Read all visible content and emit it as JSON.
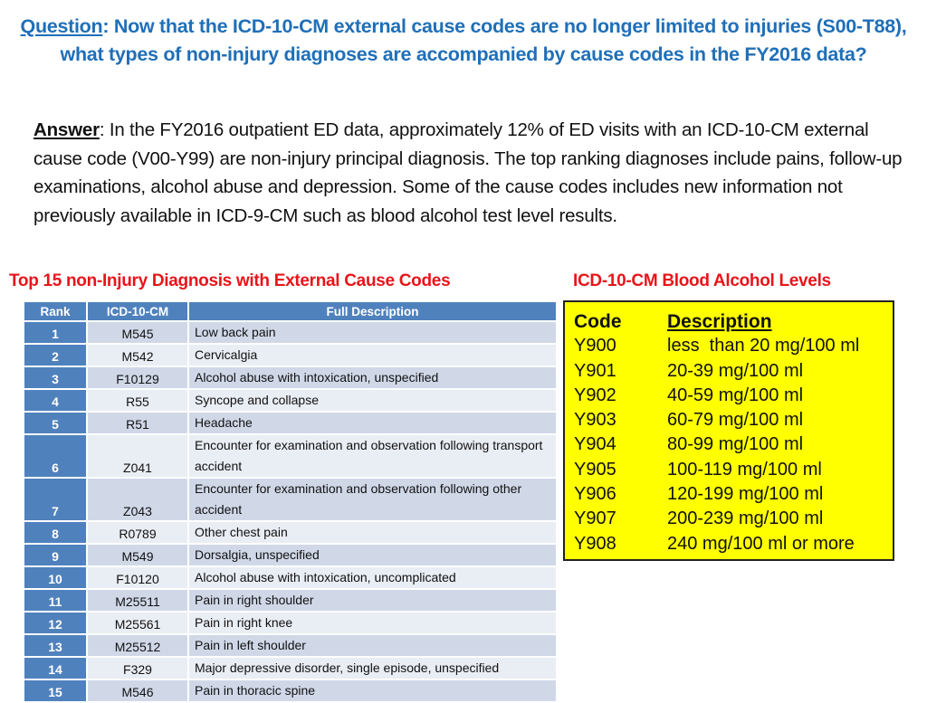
{
  "question": {
    "label": "Question",
    "text": ":  Now that the ICD-10-CM external cause codes are no longer limited to injuries (S00-T88), what types of non-injury diagnoses are accompanied by cause codes in the FY2016 data?"
  },
  "answer": {
    "label": "Answer",
    "text": ": In the FY2016 outpatient ED data, approximately 12% of ED visits with an ICD-10-CM external cause code (V00-Y99) are non-injury principal diagnosis. The top ranking diagnoses include pains, follow-up examinations, alcohol abuse and depression. Some of the cause codes includes new information not previously available in ICD-9-CM such as blood alcohol test level results."
  },
  "top15": {
    "title": "Top 15 non-Injury Diagnosis with External Cause Codes",
    "headers": [
      "Rank",
      "ICD-10-CM",
      "Full Description"
    ],
    "rows": [
      {
        "rank": "1",
        "code": "M545",
        "desc": "Low back pain"
      },
      {
        "rank": "2",
        "code": "M542",
        "desc": "Cervicalgia"
      },
      {
        "rank": "3",
        "code": "F10129",
        "desc": "Alcohol abuse with intoxication, unspecified"
      },
      {
        "rank": "4",
        "code": "R55",
        "desc": "Syncope and collapse"
      },
      {
        "rank": "5",
        "code": "R51",
        "desc": "Headache"
      },
      {
        "rank": "6",
        "code": "Z041",
        "desc": "Encounter for examination and observation following transport accident"
      },
      {
        "rank": "7",
        "code": "Z043",
        "desc": "Encounter for examination and observation following other accident"
      },
      {
        "rank": "8",
        "code": "R0789",
        "desc": "Other chest pain"
      },
      {
        "rank": "9",
        "code": "M549",
        "desc": "Dorsalgia, unspecified"
      },
      {
        "rank": "10",
        "code": "F10120",
        "desc": "Alcohol abuse with intoxication, uncomplicated"
      },
      {
        "rank": "11",
        "code": "M25511",
        "desc": "Pain in right shoulder"
      },
      {
        "rank": "12",
        "code": "M25561",
        "desc": "Pain in right knee"
      },
      {
        "rank": "13",
        "code": "M25512",
        "desc": "Pain in left shoulder"
      },
      {
        "rank": "14",
        "code": "F329",
        "desc": "Major depressive disorder, single episode, unspecified"
      },
      {
        "rank": "15",
        "code": "M546",
        "desc": "Pain in thoracic spine"
      }
    ]
  },
  "blood_alcohol": {
    "title": "ICD-10-CM Blood Alcohol Levels",
    "headers": [
      "Code",
      "Description"
    ],
    "rows": [
      {
        "code": "Y900",
        "desc": "less  than 20 mg/100 ml"
      },
      {
        "code": "Y901",
        "desc": "20-39 mg/100 ml"
      },
      {
        "code": "Y902",
        "desc": "40-59 mg/100 ml"
      },
      {
        "code": "Y903",
        "desc": "60-79 mg/100 ml"
      },
      {
        "code": "Y904",
        "desc": "80-99 mg/100 ml"
      },
      {
        "code": "Y905",
        "desc": "100-119 mg/100 ml"
      },
      {
        "code": "Y906",
        "desc": "120-199 mg/100 ml"
      },
      {
        "code": "Y907",
        "desc": "200-239 mg/100 ml"
      },
      {
        "code": "Y908",
        "desc": "240 mg/100 ml or more"
      }
    ]
  },
  "colors": {
    "question": "#1f6fb8",
    "section_title": "#e8141a",
    "table_header": "#4f81bd",
    "row_dark": "#d0d8e8",
    "row_light": "#e9edf4",
    "highlight_box": "#ffff00"
  }
}
